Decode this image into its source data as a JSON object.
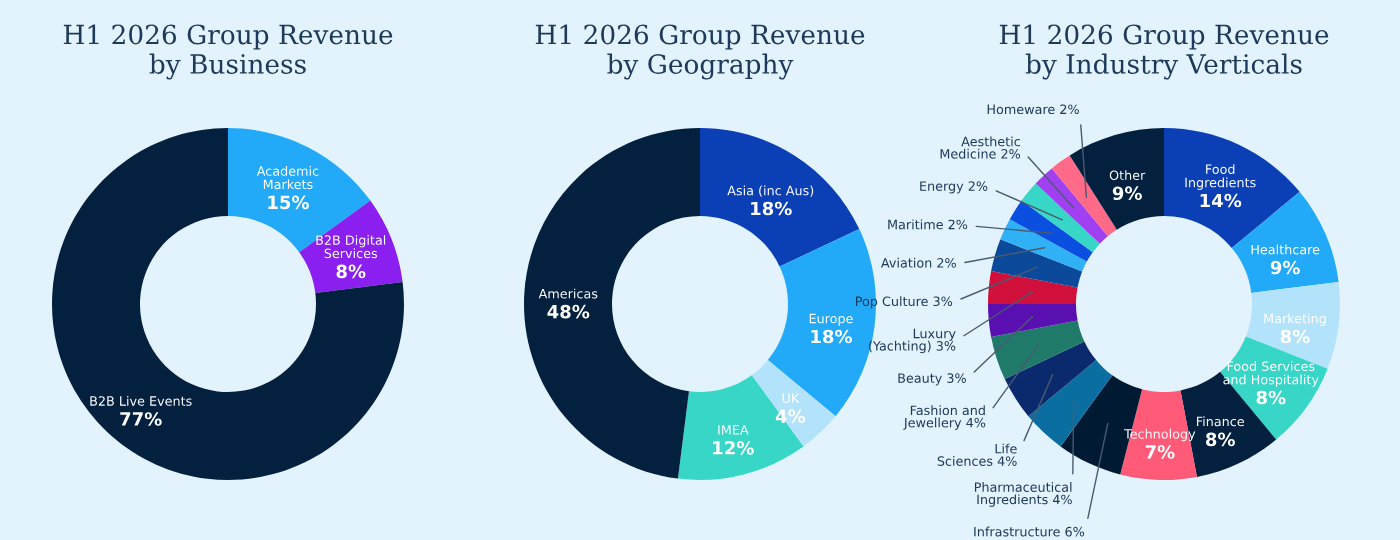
{
  "chart_data": [
    {
      "type": "donut",
      "title": "H1 2026 Group Revenue by Business",
      "categories": [
        "Academic Markets",
        "B2B Digital Services",
        "B2B Live Events"
      ],
      "values": [
        15,
        8,
        77
      ],
      "value_labels": [
        "15%",
        "8%",
        "77%"
      ],
      "colors": [
        "#22aaf8",
        "#8a1ff0",
        "#03203f"
      ]
    },
    {
      "type": "donut",
      "title": "H1 2026 Group Revenue by Geography",
      "categories": [
        "Asia (inc Aus)",
        "Europe",
        "UK",
        "IMEA",
        "Americas"
      ],
      "values": [
        18,
        18,
        4,
        12,
        48
      ],
      "value_labels": [
        "18%",
        "18%",
        "4%",
        "12%",
        "48%"
      ],
      "colors": [
        "#0b3fb5",
        "#22aaf8",
        "#b3e3fb",
        "#38d6c6",
        "#03203f"
      ]
    },
    {
      "type": "donut",
      "title": "H1 2026 Group Revenue by Industry Verticals",
      "categories": [
        "Food Ingredients",
        "Healthcare",
        "Marketing",
        "Food Services and Hospitality",
        "Finance",
        "Technology",
        "Infrastructure",
        "Pharmaceutical Ingredients",
        "Life Sciences",
        "Fashion and Jewellery",
        "Beauty",
        "Luxury (Yachting)",
        "Pop Culture",
        "Aviation",
        "Maritime",
        "Energy",
        "Aesthetic Medicine",
        "Homeware",
        "Other"
      ],
      "values": [
        14,
        9,
        8,
        8,
        8,
        7,
        6,
        4,
        4,
        4,
        3,
        3,
        3,
        2,
        2,
        2,
        2,
        2,
        9
      ],
      "value_labels": [
        "14%",
        "9%",
        "8%",
        "8%",
        "8%",
        "7%",
        "6%",
        "4%",
        "4%",
        "4%",
        "3%",
        "3%",
        "3%",
        "2%",
        "2%",
        "2%",
        "2%",
        "2%",
        "9%"
      ],
      "colors": [
        "#0b3fb5",
        "#22aaf8",
        "#b3e3fb",
        "#38d6c6",
        "#04203f",
        "#ff5a78",
        "#011a33",
        "#0a6fa0",
        "#0b2a6e",
        "#1f7a6a",
        "#5a0fb0",
        "#d0103a",
        "#0b4a9a",
        "#30b0f5",
        "#0a4fe0",
        "#38d6c6",
        "#a040f0",
        "#ff6a88",
        "#03203f"
      ]
    }
  ]
}
